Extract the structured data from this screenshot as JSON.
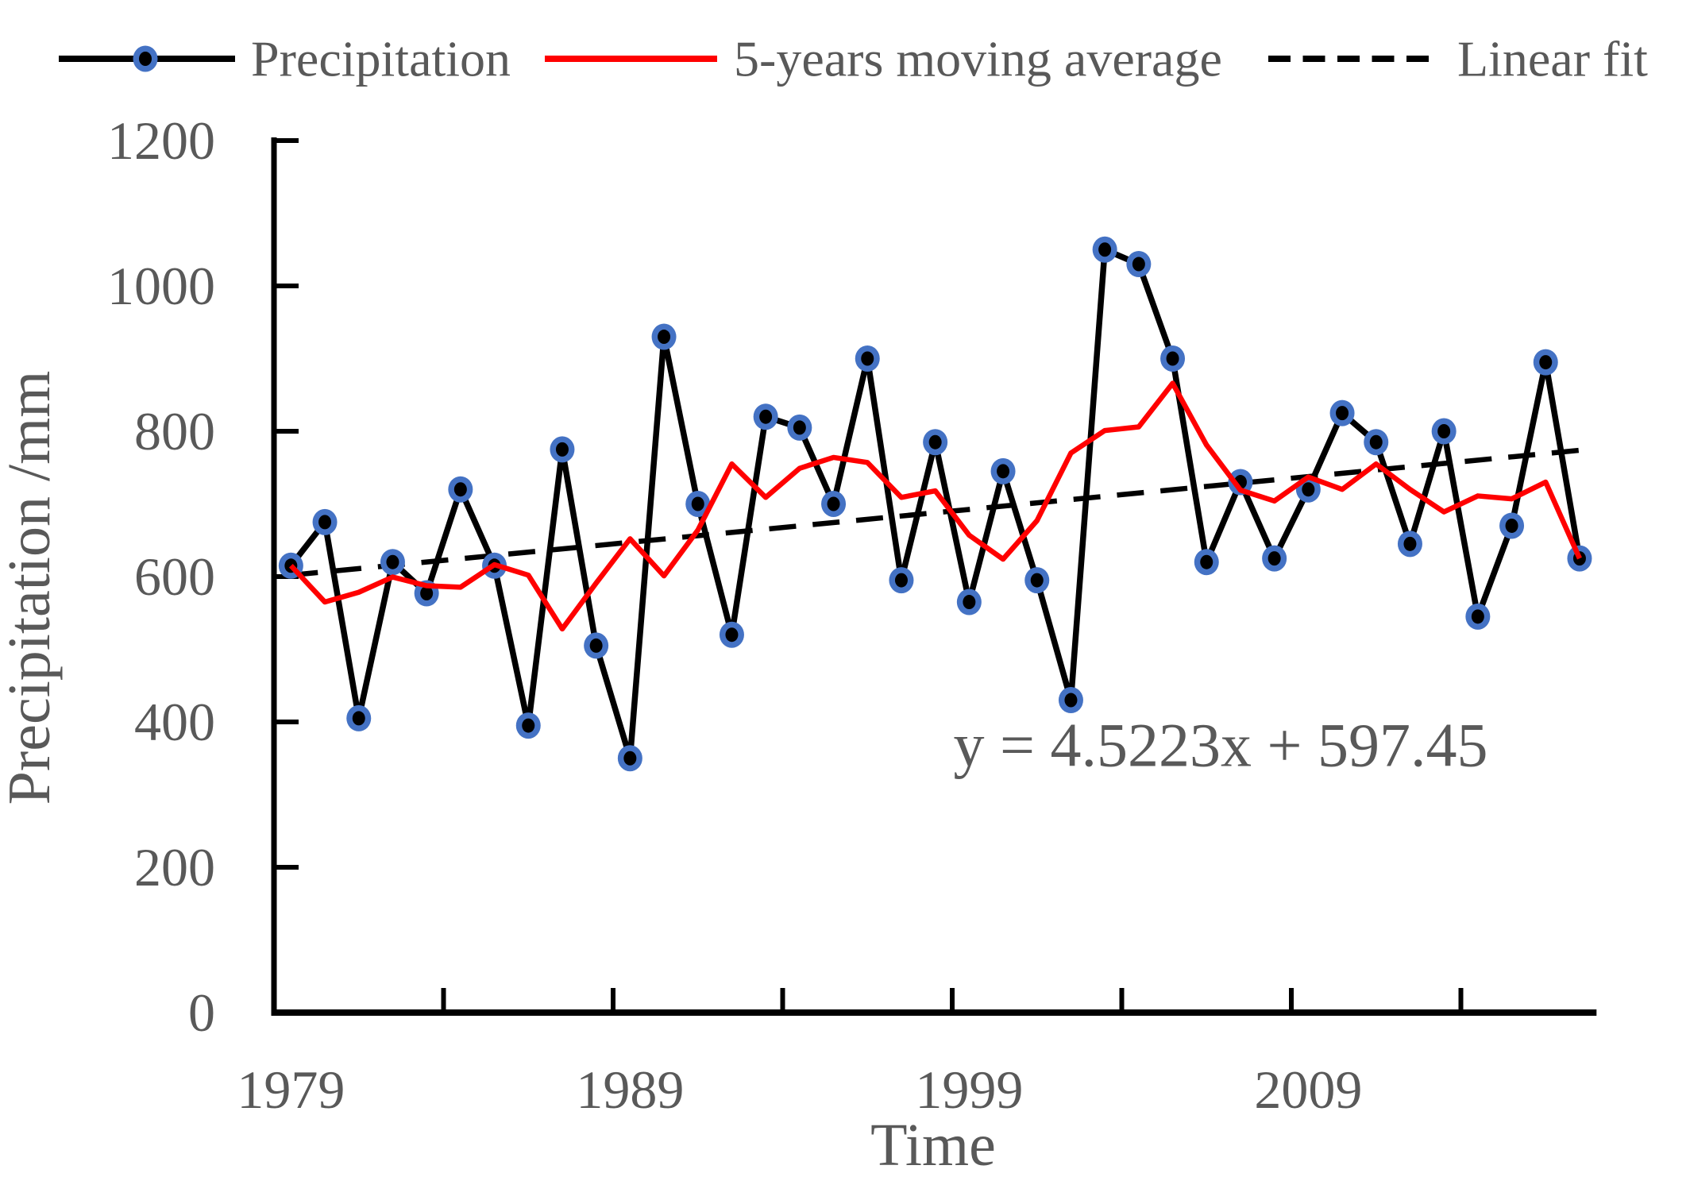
{
  "page": {
    "background": "#ffffff"
  },
  "legend": {
    "items": [
      {
        "label": "Precipitation",
        "series_type": "line_with_marker",
        "line_color": "#000000",
        "marker_fill": "#000000",
        "marker_ring": "#4472C4"
      },
      {
        "label": "5-years moving average",
        "series_type": "line",
        "line_color": "#FF0000"
      },
      {
        "label": "Linear fit",
        "series_type": "dashed_line",
        "line_color": "#000000"
      }
    ]
  },
  "axes": {
    "y_title": "Precipitation /mm",
    "x_title": "Time",
    "y_min": 0,
    "y_max": 1200,
    "y_tick_step": 200,
    "y_tick_labels": [
      "0",
      "200",
      "400",
      "600",
      "800",
      "1000",
      "1200"
    ],
    "x_tick_labels_shown": [
      "1979",
      "1989",
      "1999",
      "2009"
    ],
    "x_tick_interval_years": 5,
    "x_label_interval_years": 10,
    "tick_label_color": "#595959"
  },
  "annotation": {
    "text": "y = 4.5223x + 597.45",
    "color": "#595959"
  },
  "chart_data": {
    "type": "line",
    "title": "",
    "xlabel": "Time",
    "ylabel": "Precipitation /mm",
    "ylim": [
      0,
      1200
    ],
    "grid": false,
    "legend_position": "top",
    "years": [
      1979,
      1980,
      1981,
      1982,
      1983,
      1984,
      1985,
      1986,
      1987,
      1988,
      1989,
      1990,
      1991,
      1992,
      1993,
      1994,
      1995,
      1996,
      1997,
      1998,
      1999,
      2000,
      2001,
      2002,
      2003,
      2004,
      2005,
      2006,
      2007,
      2008,
      2009,
      2010,
      2011,
      2012,
      2013,
      2014,
      2015,
      2016,
      2017
    ],
    "series": [
      {
        "name": "Precipitation",
        "type": "line",
        "color": "#000000",
        "marker": "circle",
        "marker_fill": "#000000",
        "marker_ring_color": "#4472C4",
        "values": [
          615,
          675,
          405,
          620,
          577,
          720,
          615,
          395,
          775,
          505,
          350,
          930,
          700,
          520,
          820,
          805,
          700,
          900,
          595,
          785,
          565,
          745,
          595,
          430,
          1050,
          1030,
          900,
          620,
          730,
          625,
          720,
          825,
          785,
          645,
          800,
          545,
          670,
          895,
          625
        ]
      },
      {
        "name": "5-years moving average",
        "type": "moving_average",
        "window": 5,
        "centered": true,
        "edge_window_shrinks": true,
        "derived_from": "Precipitation",
        "color": "#FF0000"
      },
      {
        "name": "Linear fit",
        "type": "linear_trend",
        "slope": 4.5223,
        "intercept": 597.45,
        "x_index_base": 1,
        "dashed": true,
        "color": "#000000"
      }
    ]
  }
}
